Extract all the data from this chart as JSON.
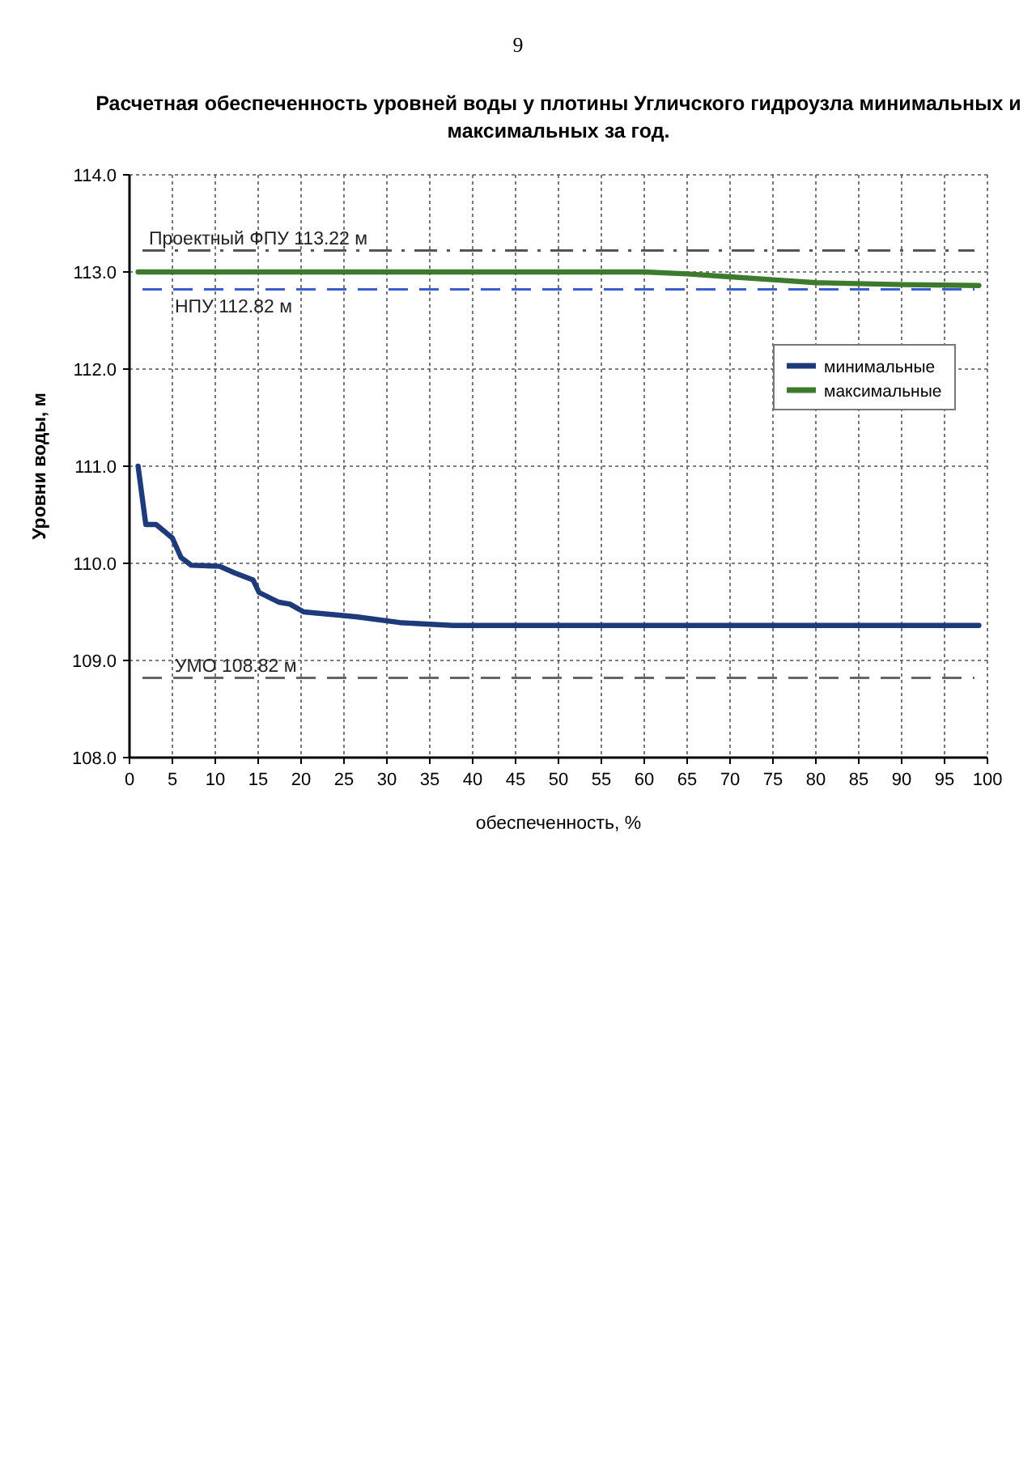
{
  "chart_data": {
    "type": "line",
    "title": "Расчетная обеспеченность уровней воды у плотины Угличского гидроузла  минимальных и максимальных за год.",
    "xlabel": "обеспеченность, %",
    "ylabel": "Уровни воды, м",
    "annotations": [
      "9"
    ],
    "xlim": [
      0,
      100
    ],
    "xticks": [
      0,
      5,
      10,
      15,
      20,
      25,
      30,
      35,
      40,
      45,
      50,
      55,
      60,
      65,
      70,
      75,
      80,
      85,
      90,
      95,
      100
    ],
    "ylim": [
      108,
      114
    ],
    "yticks": [
      {
        "value": 108,
        "label": "108.0"
      },
      {
        "value": 109,
        "label": "109.0"
      },
      {
        "value": 110,
        "label": "110.0"
      },
      {
        "value": 111,
        "label": "111.0"
      },
      {
        "value": 112,
        "label": "112.0"
      },
      {
        "value": 113,
        "label": "113.0"
      },
      {
        "value": 114,
        "label": "114.0"
      }
    ],
    "grid": true,
    "legend": "top right",
    "marker": "none",
    "line_style": "solid",
    "series": [
      {
        "name": "минимальные",
        "color": "#1f3a7a",
        "x": [
          1,
          1.9,
          3.1,
          5,
          6,
          7.2,
          10.5,
          12.3,
          14.4,
          15.1,
          17.4,
          18.7,
          20.3,
          26.4,
          31.5,
          37.7,
          50,
          70,
          99
        ],
        "values": [
          111.0,
          110.4,
          110.4,
          110.26,
          110.06,
          109.98,
          109.97,
          109.9,
          109.83,
          109.7,
          109.6,
          109.58,
          109.5,
          109.45,
          109.39,
          109.36,
          109.36,
          109.36,
          109.36
        ]
      },
      {
        "name": "максимальные",
        "color": "#3e7a2e",
        "x": [
          1,
          30,
          60,
          65,
          70,
          75,
          80,
          90,
          99
        ],
        "values": [
          113.0,
          113.0,
          113.0,
          112.98,
          112.95,
          112.92,
          112.89,
          112.87,
          112.86
        ]
      }
    ],
    "ref_lines": [
      {
        "axis": "y",
        "value": 113.22,
        "label": "Проектный ФПУ 113.22 м",
        "color": "#555555",
        "line_style": "dashdot"
      },
      {
        "axis": "y",
        "value": 112.82,
        "label": "НПУ 112.82 м",
        "color": "#3a5fcd",
        "line_style": "dashed"
      },
      {
        "axis": "y",
        "value": 108.82,
        "label": "УМО 108.82 м",
        "color": "#666666",
        "line_style": "dashed"
      }
    ]
  }
}
